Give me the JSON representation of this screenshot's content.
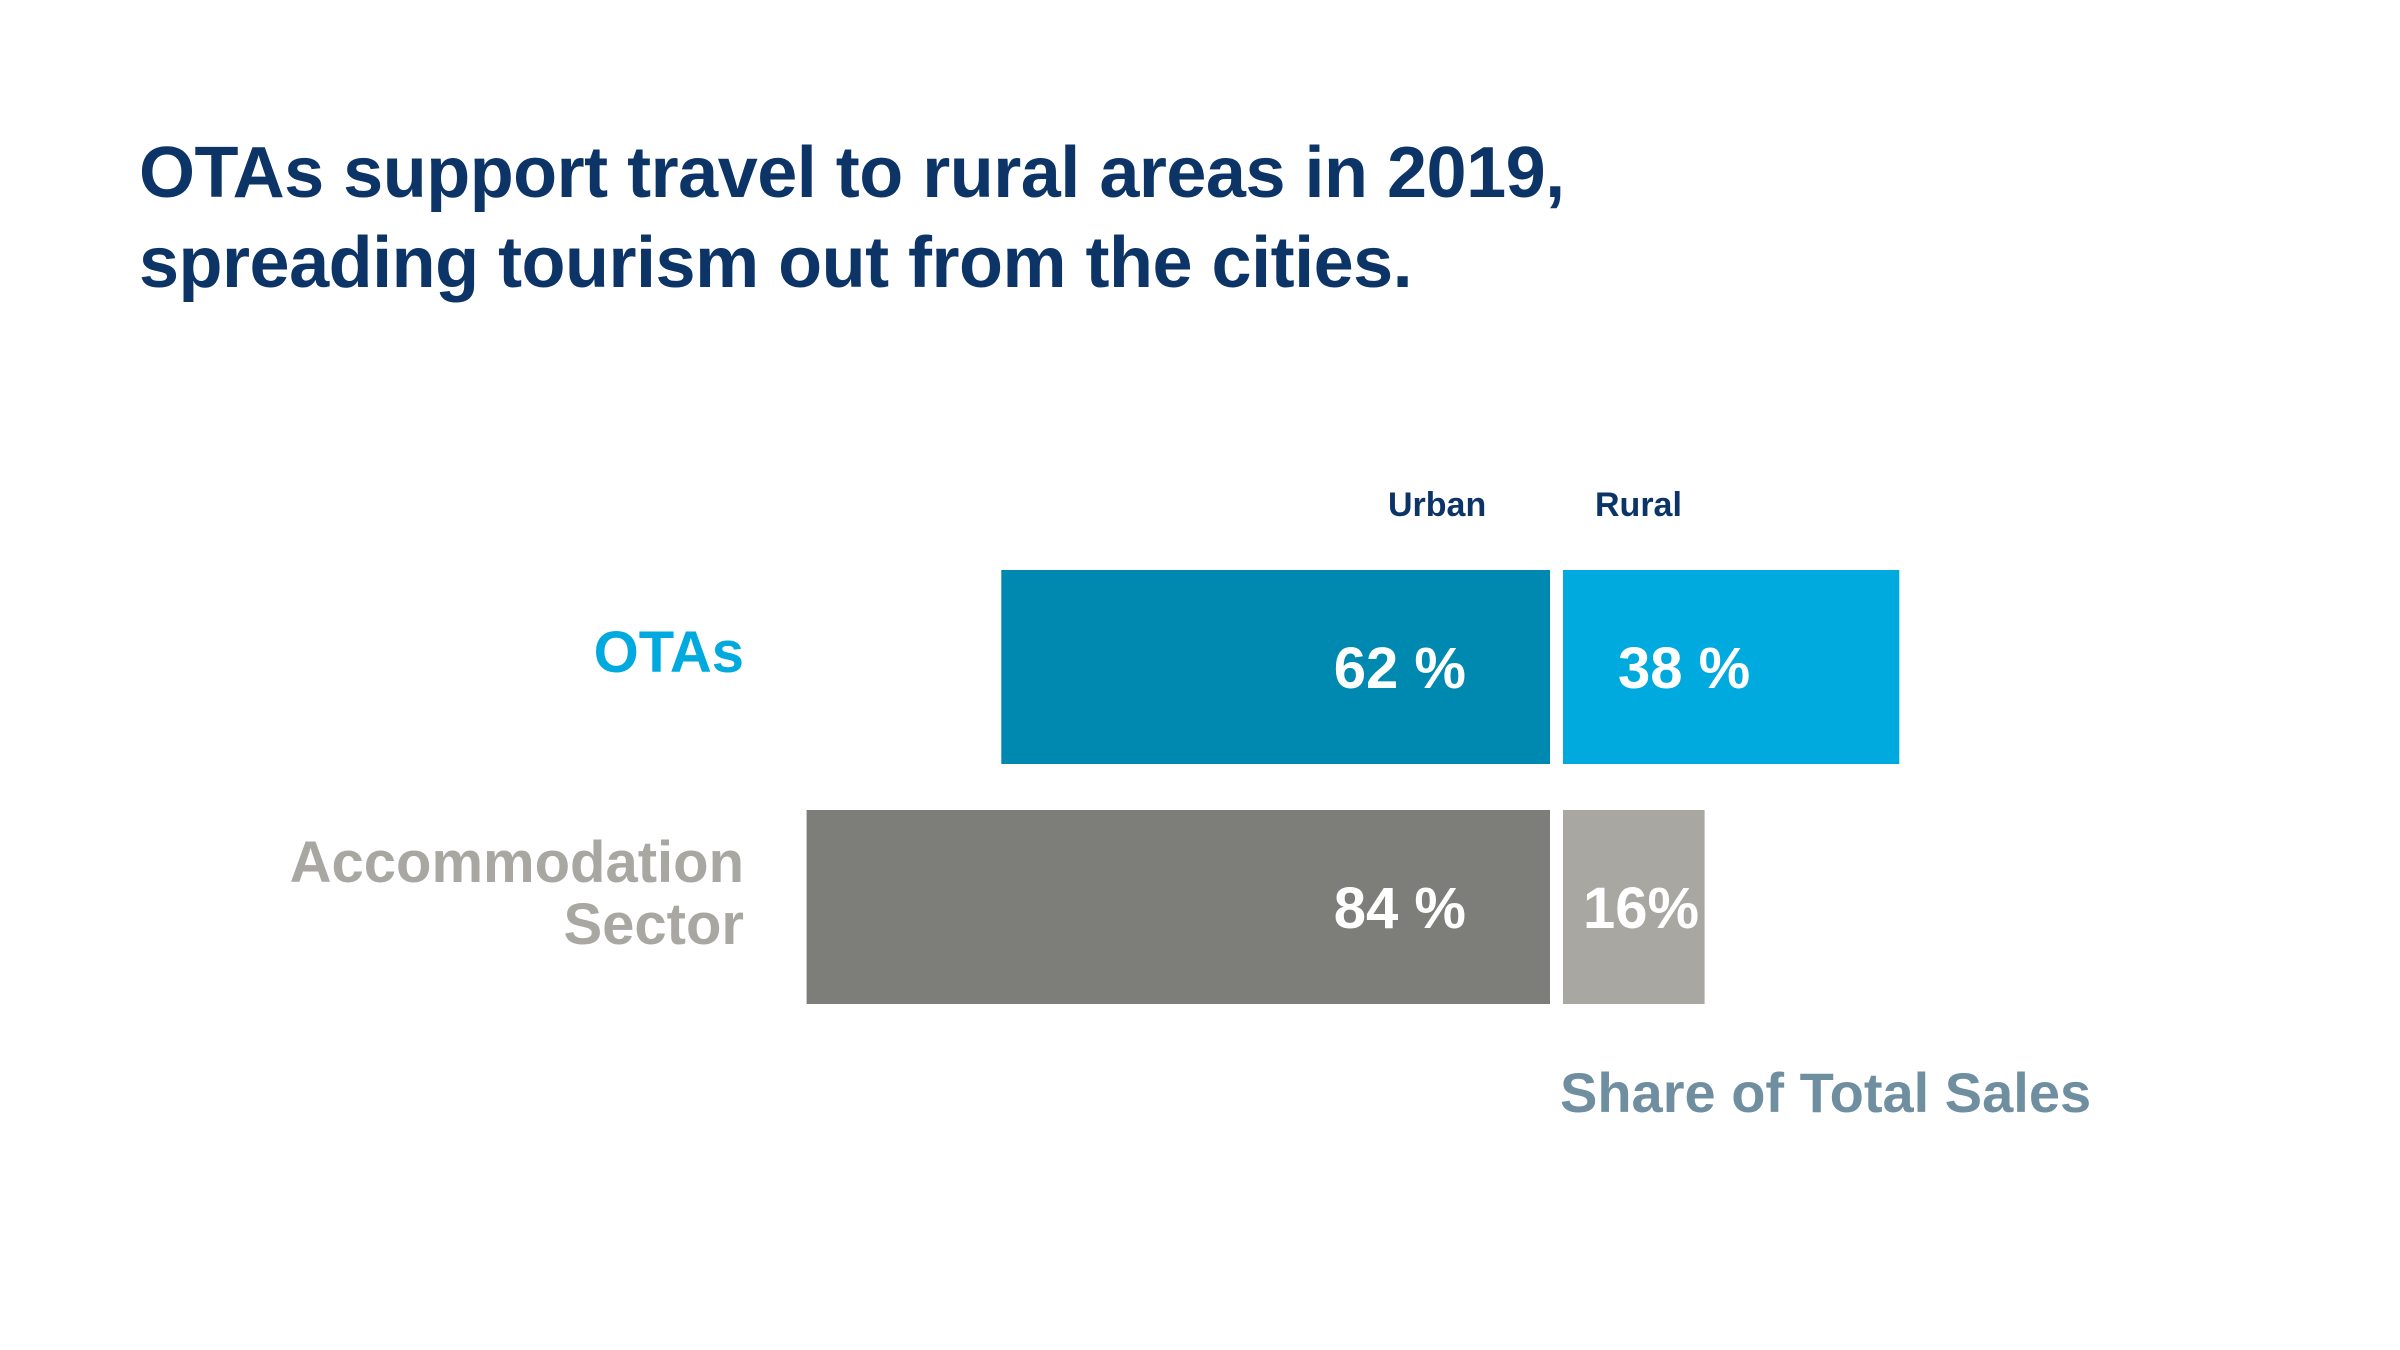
{
  "title_lines": [
    "OTAs support travel to rural areas in 2019,",
    "spreading tourism out from the cities."
  ],
  "chart_data": {
    "type": "bar",
    "orientation": "horizontal",
    "stacked": true,
    "title": "OTAs support travel to rural areas in 2019, spreading tourism out from the cities.",
    "xlabel": "Share of Total Sales",
    "ylabel": "",
    "xlim": [
      0,
      100
    ],
    "categories": [
      "OTAs",
      "Accommodation Sector"
    ],
    "series": [
      {
        "name": "Urban",
        "values": [
          62,
          84
        ],
        "labels": [
          "62 %",
          "84 %"
        ],
        "colors": [
          "#0089b0",
          "#7d7e79"
        ]
      },
      {
        "name": "Rural",
        "values": [
          38,
          16
        ],
        "labels": [
          "38 %",
          "16%"
        ],
        "colors": [
          "#00aade",
          "#a8a7a2"
        ]
      }
    ],
    "category_label_colors": [
      "#00aade",
      "#a8a7a2"
    ],
    "axis_label_color": "#6f8fa0",
    "header_color": "#0d3466"
  }
}
